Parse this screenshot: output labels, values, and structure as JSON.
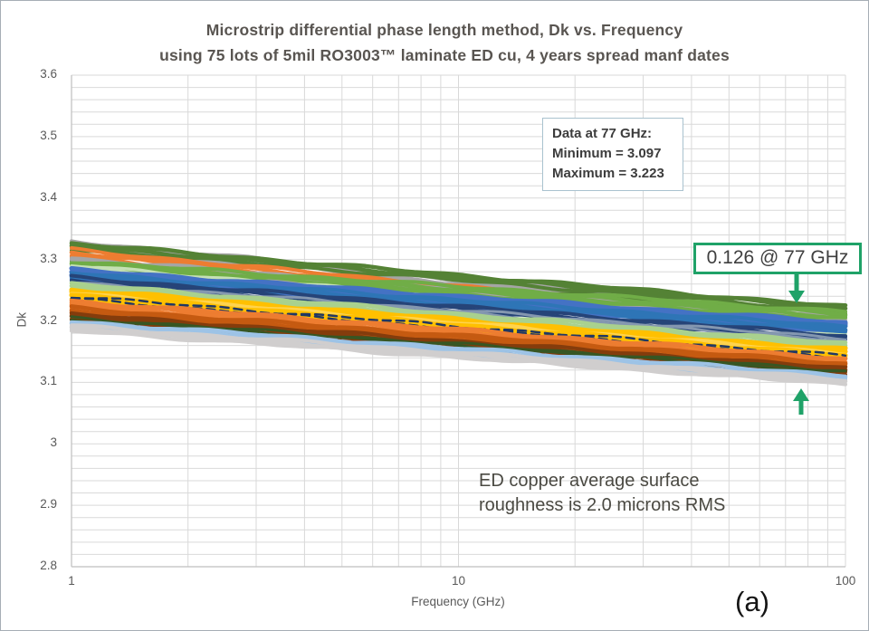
{
  "chart_data": {
    "type": "line",
    "title": "Microstrip differential phase length method, Dk vs. Frequency",
    "subtitle": "using 75 lots of 5mil RO3003™ laminate ED cu, 4 years spread manf dates",
    "xlabel": "Frequency (GHz)",
    "ylabel": "Dk",
    "x_scale": "log",
    "x_range_ghz": [
      1,
      100
    ],
    "x_ticks": [
      "1",
      "10",
      "100"
    ],
    "y_ticks": [
      "3.6",
      "3.5",
      "3.4",
      "3.3",
      "3.2",
      "3.1",
      "3",
      "2.9",
      "2.8"
    ],
    "ylim": [
      2.8,
      3.6
    ],
    "grid": {
      "minor_y_step": 0.02,
      "minor_x": "log-decade-steps",
      "color": "#d9d9d9",
      "axis_color": "#bfbfbf"
    },
    "num_lots": 75,
    "stats_at_77ghz": {
      "minimum": 3.097,
      "maximum": 3.223,
      "spread": 0.126
    },
    "series_format": [
      "dk_at_1ghz",
      "dk_at_100ghz",
      "color",
      "width_px",
      "dashed"
    ],
    "series": [
      [
        3.33,
        3.207,
        "#a5a5a5",
        4,
        0
      ],
      [
        3.327,
        3.203,
        "#a5a5a5",
        4,
        0
      ],
      [
        3.323,
        3.199,
        "#a5a5a5",
        4,
        0
      ],
      [
        3.318,
        3.195,
        "#a5a5a5",
        4,
        0
      ],
      [
        3.326,
        3.223,
        "#548235",
        4.5,
        0
      ],
      [
        3.322,
        3.22,
        "#548235",
        4.5,
        0
      ],
      [
        3.317,
        3.216,
        "#548235",
        4,
        0
      ],
      [
        3.298,
        3.212,
        "#548235",
        4,
        0
      ],
      [
        3.316,
        3.197,
        "#ed7d31",
        4,
        0
      ],
      [
        3.312,
        3.193,
        "#ed7d31",
        4.5,
        0
      ],
      [
        3.308,
        3.19,
        "#ed7d31",
        4,
        0
      ],
      [
        3.304,
        3.187,
        "#ed7d31",
        4,
        0
      ],
      [
        3.302,
        3.201,
        "#a5a5a5",
        4,
        0
      ],
      [
        3.298,
        3.197,
        "#a5a5a5",
        4,
        0
      ],
      [
        3.294,
        3.193,
        "#a5a5a5",
        4,
        0
      ],
      [
        3.297,
        3.215,
        "#70ad47",
        4,
        0
      ],
      [
        3.293,
        3.211,
        "#70ad47",
        4.5,
        0
      ],
      [
        3.289,
        3.207,
        "#70ad47",
        4,
        0
      ],
      [
        3.285,
        3.203,
        "#70ad47",
        4,
        0
      ],
      [
        3.29,
        3.185,
        "#c5e0b4",
        3.5,
        0
      ],
      [
        3.287,
        3.182,
        "#c5e0b4",
        3.5,
        0
      ],
      [
        3.284,
        3.179,
        "#c5e0b4",
        3.5,
        0
      ],
      [
        3.283,
        3.197,
        "#4472c4",
        5,
        0
      ],
      [
        3.28,
        3.194,
        "#4472c4",
        5,
        0
      ],
      [
        3.277,
        3.191,
        "#4472c4",
        5,
        0
      ],
      [
        3.274,
        3.188,
        "#4472c4",
        4.5,
        0
      ],
      [
        3.271,
        3.185,
        "#4472c4",
        4.5,
        0
      ],
      [
        3.268,
        3.182,
        "#4472c4",
        4,
        0
      ],
      [
        3.278,
        3.191,
        "#2e75b6",
        4,
        0
      ],
      [
        3.274,
        3.187,
        "#2e75b6",
        4,
        0
      ],
      [
        3.27,
        3.183,
        "#2e75b6",
        4,
        0
      ],
      [
        3.271,
        3.176,
        "#264478",
        4,
        0
      ],
      [
        3.267,
        3.172,
        "#264478",
        4,
        0
      ],
      [
        3.263,
        3.169,
        "#264478",
        4,
        0
      ],
      [
        3.262,
        3.172,
        "#8497b0",
        3,
        0
      ],
      [
        3.258,
        3.168,
        "#8497b0",
        3,
        0
      ],
      [
        3.26,
        3.163,
        "#a9d18e",
        4.5,
        0
      ],
      [
        3.257,
        3.16,
        "#a9d18e",
        4.5,
        0
      ],
      [
        3.254,
        3.157,
        "#a9d18e",
        4.5,
        0
      ],
      [
        3.251,
        3.154,
        "#a9d18e",
        4,
        0
      ],
      [
        3.248,
        3.151,
        "#a9d18e",
        4,
        0
      ],
      [
        3.251,
        3.153,
        "#ffc000",
        5,
        0
      ],
      [
        3.248,
        3.15,
        "#ffc000",
        5,
        0
      ],
      [
        3.245,
        3.147,
        "#ffd34d",
        4.5,
        0
      ],
      [
        3.242,
        3.144,
        "#ffc000",
        5,
        0
      ],
      [
        3.239,
        3.141,
        "#ffc000",
        4.5,
        0
      ],
      [
        3.236,
        3.138,
        "#ffc000",
        4.5,
        0
      ],
      [
        3.24,
        3.143,
        "#203864",
        2.5,
        1
      ],
      [
        3.236,
        3.139,
        "#203864",
        2.5,
        1
      ],
      [
        3.232,
        3.139,
        "#ed7d31",
        4.5,
        0
      ],
      [
        3.229,
        3.136,
        "#ed7d31",
        4.5,
        0
      ],
      [
        3.226,
        3.133,
        "#ed7d31",
        4.5,
        0
      ],
      [
        3.223,
        3.13,
        "#ed7d31",
        4,
        0
      ],
      [
        3.22,
        3.127,
        "#ed7d31",
        4,
        0
      ],
      [
        3.221,
        3.131,
        "#c55a11",
        4.5,
        0
      ],
      [
        3.218,
        3.128,
        "#c55a11",
        4.5,
        0
      ],
      [
        3.215,
        3.125,
        "#c55a11",
        4.5,
        0
      ],
      [
        3.212,
        3.122,
        "#c55a11",
        4,
        0
      ],
      [
        3.209,
        3.119,
        "#c55a11",
        4,
        0
      ],
      [
        3.211,
        3.123,
        "#843c0c",
        4,
        0
      ],
      [
        3.208,
        3.12,
        "#843c0c",
        4.5,
        0
      ],
      [
        3.205,
        3.117,
        "#843c0c",
        4,
        0
      ],
      [
        3.202,
        3.114,
        "#843c0c",
        4,
        0
      ],
      [
        3.205,
        3.119,
        "#375623",
        3,
        0
      ],
      [
        3.202,
        3.116,
        "#375623",
        3,
        0
      ],
      [
        3.198,
        3.11,
        "#7f7f7f",
        2,
        1
      ],
      [
        3.199,
        3.112,
        "#9dc3e6",
        4,
        0
      ],
      [
        3.196,
        3.109,
        "#9dc3e6",
        4.5,
        0
      ],
      [
        3.193,
        3.107,
        "#9dc3e6",
        4,
        0
      ],
      [
        3.19,
        3.104,
        "#9dc3e6",
        4,
        0
      ],
      [
        3.188,
        3.102,
        "#9dc3e6",
        4,
        0
      ],
      [
        3.192,
        3.105,
        "#d0cece",
        4,
        0
      ],
      [
        3.189,
        3.102,
        "#d0cece",
        4.5,
        0
      ],
      [
        3.186,
        3.099,
        "#d0cece",
        4,
        0
      ],
      [
        3.184,
        3.097,
        "#d0cece",
        4,
        0
      ]
    ]
  },
  "annotations": {
    "stats_box": {
      "line1": "Data at 77 GHz:",
      "line2": "Minimum = 3.097",
      "line3": "Maximum = 3.223",
      "border_color": "#a9c2cf"
    },
    "delta_box": {
      "label": "0.126 @ 77 GHz",
      "border_color": "#1fa268"
    },
    "arrow_color": "#1fa268",
    "roughness_note": {
      "line1": "ED copper average surface",
      "line2": "roughness is 2.0 microns RMS"
    },
    "subfigure_label": "(a)"
  }
}
